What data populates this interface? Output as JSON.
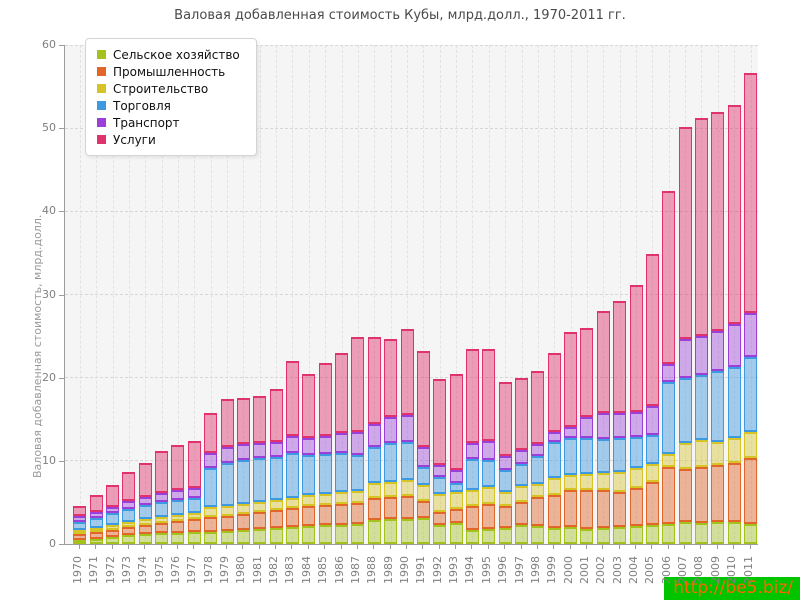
{
  "title": "Валовая добавленная стоимость Кубы, млрд.долл., 1970-2011 гг.",
  "watermark": "http://be5.biz/",
  "y_axis": {
    "label": "Валовая добавленная стоимость, млрд.долл.",
    "ticks": [
      0,
      10,
      20,
      30,
      40,
      50,
      60
    ]
  },
  "legend": [
    {
      "label": "Сельское хозяйство",
      "color": "#a3c21c"
    },
    {
      "label": "Промышленность",
      "color": "#e0662a"
    },
    {
      "label": "Строительство",
      "color": "#d6c426"
    },
    {
      "label": "Торговля",
      "color": "#3d99e0"
    },
    {
      "label": "Транспорт",
      "color": "#9a3fd8"
    },
    {
      "label": "Услуги",
      "color": "#e0336e"
    }
  ],
  "chart_data": {
    "type": "bar",
    "stacked": true,
    "grid": true,
    "legend_position": "top-left",
    "title": "Валовая добавленная стоимость Кубы, млрд.долл., 1970-2011 гг.",
    "xlabel": "",
    "ylabel": "Валовая добавленная стоимость, млрд.долл.",
    "ylim": [
      0,
      60
    ],
    "yticks": [
      0,
      10,
      20,
      30,
      40,
      50,
      60
    ],
    "categories": [
      1970,
      1971,
      1972,
      1973,
      1974,
      1975,
      1976,
      1977,
      1978,
      1979,
      1980,
      1981,
      1982,
      1983,
      1984,
      1985,
      1986,
      1987,
      1988,
      1989,
      1990,
      1991,
      1992,
      1993,
      1994,
      1995,
      1996,
      1997,
      1998,
      1999,
      2000,
      2001,
      2002,
      2003,
      2004,
      2005,
      2006,
      2007,
      2008,
      2009,
      2010,
      2011
    ],
    "series": [
      {
        "name": "Сельское хозяйство",
        "color": "#a3c21c",
        "fill": "rgba(163,194,28,0.42)",
        "values": [
          0.5,
          0.65,
          0.85,
          1.05,
          1.15,
          1.3,
          1.35,
          1.45,
          1.5,
          1.6,
          1.7,
          1.85,
          1.9,
          2.0,
          2.15,
          2.25,
          2.3,
          2.4,
          2.85,
          2.95,
          3.05,
          3.1,
          2.25,
          2.55,
          1.65,
          1.85,
          1.9,
          2.3,
          2.15,
          1.9,
          2.05,
          1.85,
          1.9,
          2.05,
          2.15,
          2.3,
          2.45,
          2.65,
          2.55,
          2.65,
          2.65,
          2.4
        ]
      },
      {
        "name": "Промышленность",
        "color": "#e0662a",
        "fill": "rgba(224,102,42,0.45)",
        "values": [
          0.7,
          0.8,
          0.85,
          1.0,
          1.15,
          1.25,
          1.4,
          1.5,
          1.7,
          1.8,
          1.9,
          2.05,
          2.2,
          2.3,
          2.45,
          2.45,
          2.55,
          2.55,
          2.65,
          2.7,
          2.7,
          2.1,
          1.65,
          1.65,
          2.9,
          3.0,
          2.7,
          2.7,
          3.5,
          4.0,
          4.5,
          4.6,
          4.55,
          4.25,
          4.6,
          5.15,
          6.8,
          6.4,
          6.7,
          6.8,
          7.1,
          7.9
        ]
      },
      {
        "name": "Строительство",
        "color": "#d6c426",
        "fill": "rgba(214,196,38,0.42)",
        "values": [
          0.5,
          0.5,
          0.55,
          0.65,
          0.65,
          0.75,
          0.75,
          0.8,
          1.3,
          1.2,
          1.2,
          1.2,
          1.15,
          1.2,
          1.25,
          1.35,
          1.4,
          1.4,
          1.85,
          1.85,
          1.9,
          1.9,
          2.15,
          2.1,
          2.0,
          2.0,
          1.7,
          2.0,
          1.6,
          2.0,
          1.75,
          2.0,
          2.1,
          2.35,
          2.35,
          2.2,
          1.55,
          3.1,
          3.2,
          2.85,
          3.0,
          3.2
        ]
      },
      {
        "name": "Торговля",
        "color": "#3d99e0",
        "fill": "rgba(61,153,224,0.45)",
        "values": [
          1.0,
          1.2,
          1.45,
          1.55,
          1.7,
          1.75,
          1.75,
          1.75,
          4.7,
          5.2,
          5.3,
          5.2,
          5.25,
          5.4,
          4.85,
          4.75,
          4.65,
          4.35,
          4.35,
          4.6,
          4.6,
          2.2,
          2.05,
          1.0,
          3.7,
          3.25,
          2.6,
          2.6,
          3.35,
          4.4,
          4.4,
          4.25,
          4.1,
          4.05,
          3.75,
          3.4,
          8.65,
          7.8,
          7.9,
          8.45,
          8.55,
          9.0
        ]
      },
      {
        "name": "Транспорт",
        "color": "#9a3fd8",
        "fill": "rgba(154,63,216,0.42)",
        "values": [
          0.65,
          0.7,
          0.8,
          0.9,
          1.0,
          1.1,
          1.2,
          1.25,
          1.7,
          1.9,
          1.9,
          1.9,
          1.8,
          2.1,
          2.0,
          2.2,
          2.4,
          2.8,
          2.75,
          3.15,
          3.3,
          2.4,
          1.45,
          1.6,
          1.85,
          2.25,
          1.7,
          1.65,
          1.4,
          1.2,
          1.4,
          2.6,
          3.05,
          3.1,
          3.05,
          3.6,
          2.25,
          4.65,
          4.65,
          4.85,
          5.1,
          5.3
        ]
      },
      {
        "name": "Услуги",
        "color": "#e0336e",
        "fill": "rgba(224,51,110,0.45)",
        "values": [
          1.25,
          2.05,
          2.6,
          3.45,
          4.15,
          5.05,
          5.45,
          5.65,
          4.8,
          5.7,
          5.5,
          5.6,
          6.4,
          9.0,
          7.8,
          8.8,
          9.7,
          11.4,
          10.45,
          9.45,
          10.25,
          11.5,
          10.35,
          11.6,
          11.3,
          11.05,
          8.9,
          8.75,
          8.8,
          9.5,
          11.4,
          10.7,
          12.3,
          13.4,
          15.2,
          18.25,
          20.7,
          25.5,
          26.2,
          26.4,
          26.4,
          28.8
        ]
      }
    ]
  }
}
